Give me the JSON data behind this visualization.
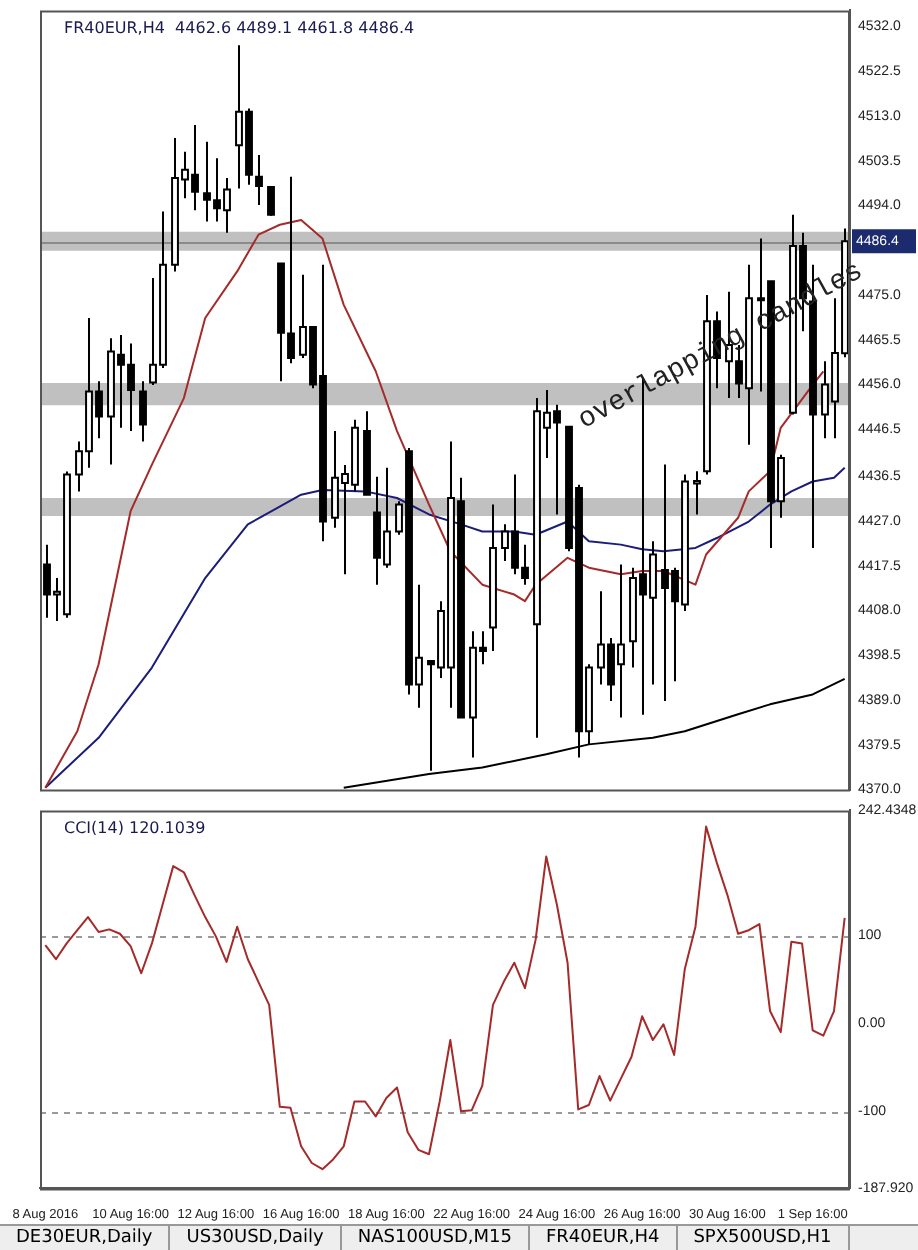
{
  "chart_data": [
    {
      "type": "candlestick",
      "title": "FR40EUR,H4  4462.6 4489.1 4461.8 4486.4",
      "categories": [
        null,
        null,
        null,
        null,
        null,
        null,
        null,
        null,
        null,
        null,
        null,
        null,
        null,
        null,
        null,
        null,
        null,
        null,
        null,
        null,
        null,
        null,
        null,
        null,
        null,
        null,
        null,
        null,
        null,
        null,
        null,
        null,
        null,
        null,
        null,
        null,
        null,
        null,
        null,
        null,
        null,
        null,
        null,
        null,
        null,
        null,
        null,
        null,
        null,
        null,
        null,
        null,
        null,
        null,
        null,
        null,
        null,
        null,
        null,
        null,
        null,
        null,
        null,
        null,
        null,
        null,
        null,
        null,
        null,
        null,
        null,
        null,
        null,
        null,
        null,
        null
      ],
      "ohlc": [
        [
          4417.8,
          4422.0,
          4406.5,
          4411.4
        ],
        [
          4411.4,
          4414.9,
          4405.8,
          4412.0
        ],
        [
          4407.2,
          4437.5,
          4406.5,
          4436.9
        ],
        [
          4436.9,
          4443.9,
          4433.3,
          4441.8
        ],
        [
          4441.8,
          4470.1,
          4438.3,
          4454.5
        ],
        [
          4454.5,
          4456.7,
          4444.6,
          4449.2
        ],
        [
          4449.2,
          4465.8,
          4439.0,
          4463.0
        ],
        [
          4462.3,
          4466.5,
          4446.8,
          4460.2
        ],
        [
          4460.2,
          4464.7,
          4446.1,
          4454.8
        ],
        [
          4454.5,
          4456.7,
          4443.9,
          4447.5
        ],
        [
          4456.4,
          4478.6,
          4455.9,
          4460.2
        ],
        [
          4460.2,
          4492.7,
          4459.5,
          4481.4
        ],
        [
          4481.4,
          4508.3,
          4480.0,
          4499.8
        ],
        [
          4499.5,
          4505.4,
          4495.5,
          4501.6
        ],
        [
          4500.5,
          4511.1,
          4493.0,
          4496.9
        ],
        [
          4496.6,
          4507.5,
          4490.6,
          4495.2
        ],
        [
          4495.1,
          4504.0,
          4490.6,
          4493.4
        ],
        [
          4493.0,
          4499.8,
          4488.2,
          4497.4
        ],
        [
          4506.8,
          4528.0,
          4497.6,
          4513.9
        ],
        [
          4513.9,
          4514.6,
          4498.4,
          4500.5
        ],
        [
          4500.1,
          4504.7,
          4494.1,
          4498.1
        ],
        [
          4497.9,
          4497.9,
          4491.8,
          4492.0
        ],
        [
          4481.7,
          4481.7,
          4456.7,
          4467.0
        ],
        [
          4466.8,
          4500.1,
          4460.5,
          4461.6
        ],
        [
          4462.3,
          4479.3,
          4461.6,
          4468.2
        ],
        [
          4468.2,
          4468.2,
          4455.2,
          4456.0
        ],
        [
          4457.8,
          4481.4,
          4422.7,
          4426.9
        ],
        [
          4427.7,
          4446.1,
          4425.6,
          4436.2
        ],
        [
          4435.1,
          4438.9,
          4415.7,
          4437.0
        ],
        [
          4434.7,
          4448.5,
          4433.3,
          4446.8
        ],
        [
          4446.1,
          4450.3,
          4432.6,
          4432.6
        ],
        [
          4428.8,
          4436.4,
          4413.5,
          4419.2
        ],
        [
          4417.8,
          4438.3,
          4417.1,
          4424.8
        ],
        [
          4424.8,
          4431.2,
          4424.1,
          4430.5
        ],
        [
          4441.8,
          4442.5,
          4390.2,
          4392.3
        ],
        [
          4392.3,
          4413.5,
          4387.4,
          4398.0
        ],
        [
          4397.3,
          4397.3,
          4374.0,
          4396.6
        ],
        [
          4395.9,
          4410.0,
          4393.7,
          4407.9
        ],
        [
          4395.9,
          4443.9,
          4387.4,
          4431.9
        ],
        [
          4431.2,
          4436.2,
          4385.3,
          4385.3
        ],
        [
          4385.3,
          4403.6,
          4376.8,
          4400.1
        ],
        [
          4400.1,
          4403.6,
          4396.6,
          4399.4
        ],
        [
          4404.4,
          4430.5,
          4399.4,
          4421.3
        ],
        [
          4421.3,
          4426.3,
          4418.5,
          4424.8
        ],
        [
          4424.8,
          4436.9,
          4415.7,
          4417.1
        ],
        [
          4417.1,
          4422.0,
          4413.5,
          4414.9
        ],
        [
          4405.1,
          4453.1,
          4381.0,
          4450.3
        ],
        [
          4446.8,
          4454.8,
          4440.4,
          4450.0
        ],
        [
          4450.3,
          4451.7,
          4428.4,
          4447.9
        ],
        [
          4447.0,
          4447.0,
          4420.6,
          4421.3
        ],
        [
          4434.0,
          4434.7,
          4376.8,
          4382.4
        ],
        [
          4382.4,
          4396.6,
          4379.6,
          4395.9
        ],
        [
          4395.9,
          4412.1,
          4392.3,
          4400.8
        ],
        [
          4400.8,
          4402.2,
          4388.8,
          4392.3
        ],
        [
          4396.6,
          4417.8,
          4385.3,
          4400.8
        ],
        [
          4401.5,
          4417.1,
          4395.9,
          4414.9
        ],
        [
          4415.7,
          4457.4,
          4385.9,
          4411.4
        ],
        [
          4410.7,
          4422.7,
          4392.3,
          4419.9
        ],
        [
          4416.6,
          4439.0,
          4388.8,
          4412.8
        ],
        [
          4416.4,
          4417.1,
          4393.0,
          4410.0
        ],
        [
          4409.3,
          4436.9,
          4407.9,
          4435.4
        ],
        [
          4435.0,
          4437.6,
          4428.4,
          4435.5
        ],
        [
          4437.6,
          4475.0,
          4436.9,
          4469.4
        ],
        [
          4469.4,
          4471.5,
          4455.2,
          4461.6
        ],
        [
          4460.9,
          4475.7,
          4453.1,
          4464.4
        ],
        [
          4460.9,
          4464.4,
          4453.1,
          4456.2
        ],
        [
          4455.2,
          4481.4,
          4443.2,
          4474.3
        ],
        [
          4474.0,
          4487.0,
          4454.5,
          4474.3
        ],
        [
          4477.9,
          4477.9,
          4421.3,
          4431.2
        ],
        [
          4431.2,
          4441.1,
          4427.7,
          4440.4
        ],
        [
          4450.0,
          4492.0,
          4449.6,
          4485.4
        ],
        [
          4485.4,
          4488.2,
          4467.3,
          4474.3
        ],
        [
          4473.6,
          4481.4,
          4421.3,
          4449.6
        ],
        [
          4449.6,
          4460.9,
          4444.6,
          4456.0
        ],
        [
          4452.4,
          4474.3,
          4444.6,
          4462.7
        ],
        [
          4462.6,
          4489.1,
          4461.8,
          4486.4
        ]
      ],
      "series": [
        {
          "type": "line",
          "color": "#a52a2a",
          "values": [
            4370.4,
            null,
            null,
            4382.4,
            null,
            4396.6,
            null,
            null,
            4429.1,
            null,
            4439.0,
            null,
            null,
            4453.1,
            null,
            4470.1,
            null,
            null,
            4480.0,
            null,
            4487.8,
            null,
            4489.9,
            null,
            4490.9,
            null,
            4487.0,
            null,
            4472.9,
            null,
            null,
            4458.8,
            null,
            4446.1,
            null,
            null,
            4430.5,
            null,
            4420.6,
            null,
            null,
            4413.5,
            null,
            null,
            4411.4,
            4410.0,
            4413.5,
            null,
            null,
            4419.2,
            null,
            4417.1,
            null,
            null,
            4415.7,
            null,
            4416.4,
            null,
            4416.4,
            null,
            null,
            4413.5,
            4419.9,
            null,
            null,
            4427.7,
            4433.3,
            null,
            4437.6,
            4446.8,
            null,
            null,
            4455.9,
            4458.8,
            null,
            null
          ]
        },
        {
          "type": "line",
          "color": "#1c1c7a",
          "values": [
            4370.4,
            null,
            null,
            null,
            null,
            4381.0,
            null,
            null,
            null,
            null,
            4395.9,
            null,
            null,
            null,
            null,
            4414.9,
            null,
            null,
            null,
            4426.3,
            null,
            null,
            null,
            null,
            4432.6,
            null,
            4433.6,
            null,
            null,
            null,
            4433.3,
            null,
            null,
            4431.9,
            null,
            null,
            4428.4,
            null,
            null,
            4426.3,
            null,
            4424.8,
            null,
            null,
            4424.8,
            null,
            4424.1,
            null,
            null,
            4426.9,
            null,
            4422.7,
            null,
            null,
            4422.0,
            null,
            4421.0,
            null,
            4420.6,
            null,
            null,
            4421.3,
            null,
            4423.4,
            null,
            null,
            4426.9,
            null,
            4430.5,
            null,
            4433.3,
            null,
            4435.4,
            null,
            4436.2,
            4438.3
          ]
        },
        {
          "type": "line",
          "color": "#000000",
          "values": [
            null,
            null,
            null,
            null,
            null,
            null,
            null,
            null,
            null,
            null,
            null,
            null,
            null,
            null,
            null,
            null,
            null,
            null,
            null,
            null,
            null,
            null,
            null,
            null,
            null,
            null,
            null,
            null,
            4370.4,
            null,
            null,
            null,
            null,
            null,
            null,
            null,
            4373.3,
            null,
            null,
            null,
            null,
            4374.7,
            null,
            null,
            null,
            null,
            null,
            4377.5,
            null,
            null,
            null,
            4379.6,
            null,
            null,
            null,
            null,
            null,
            4381.0,
            null,
            null,
            4382.4,
            null,
            null,
            null,
            null,
            4386.0,
            null,
            null,
            4388.1,
            null,
            null,
            null,
            4390.2,
            null,
            null,
            4393.5
          ]
        }
      ],
      "ylim": [
        4370,
        4535.4
      ],
      "yticks": [
        {
          "value": 4370,
          "label": "4370.0"
        },
        {
          "value": 4379.5,
          "label": "4379.5"
        },
        {
          "value": 4389,
          "label": "4389.0"
        },
        {
          "value": 4398.5,
          "label": "4398.5"
        },
        {
          "value": 4408,
          "label": "4408.0"
        },
        {
          "value": 4417.5,
          "label": "4417.5"
        },
        {
          "value": 4427,
          "label": "4427.0"
        },
        {
          "value": 4436.5,
          "label": "4436.5"
        },
        {
          "value": 4446.5,
          "label": "4446.5"
        },
        {
          "value": 4456,
          "label": "4456.0"
        },
        {
          "value": 4465.5,
          "label": "4465.5"
        },
        {
          "value": 4475,
          "label": "4475.0"
        },
        {
          "value": 4494,
          "label": "4494.0"
        },
        {
          "value": 4503.5,
          "label": "4503.5"
        },
        {
          "value": 4513,
          "label": "4513.0"
        },
        {
          "value": 4522.5,
          "label": "4522.5"
        },
        {
          "value": 4532,
          "label": "4532.0"
        }
      ],
      "tick_labels": "y",
      "bands": [
        {
          "axis": "y",
          "from": 4451.6,
          "to": 4456.3,
          "color": "#c0c0c0"
        },
        {
          "axis": "y",
          "from": 4428.1,
          "to": 4431.9,
          "color": "#c0c0c0"
        },
        {
          "axis": "y",
          "from": 4484.4,
          "to": 4488.4,
          "color": "#c0c0c0"
        }
      ],
      "ref_lines": [
        {
          "axis": "y",
          "value": 4486.4,
          "label": "4486.4",
          "color": "#8a8a8a"
        }
      ],
      "annotations": [
        "overlapping candles"
      ]
    },
    {
      "type": "line",
      "title": "CCI(14) 120.1039",
      "categories": [
        "8 Aug 2016",
        null,
        null,
        null,
        null,
        null,
        null,
        null,
        "10 Aug 16:00",
        null,
        null,
        null,
        null,
        null,
        null,
        null,
        "12 Aug 16:00",
        null,
        null,
        null,
        null,
        null,
        null,
        null,
        "16 Aug 16:00",
        null,
        null,
        null,
        null,
        null,
        null,
        null,
        "18 Aug 16:00",
        null,
        null,
        null,
        null,
        null,
        null,
        null,
        "22 Aug 16:00",
        null,
        null,
        null,
        null,
        null,
        null,
        null,
        "24 Aug 16:00",
        null,
        null,
        null,
        null,
        null,
        null,
        null,
        "26 Aug 16:00",
        null,
        null,
        null,
        null,
        null,
        null,
        null,
        "30 Aug 16:00",
        null,
        null,
        null,
        null,
        null,
        null,
        null,
        "1 Sep 16:00",
        null,
        null,
        null
      ],
      "series": [
        {
          "color": "#a52a2a",
          "values": [
            89,
            73,
            91,
            106,
            121,
            104,
            107,
            102,
            88,
            57,
            91,
            135,
            179,
            172,
            146,
            121,
            99,
            70,
            110,
            73,
            47,
            21,
            -95,
            -96,
            -140,
            -159,
            -166,
            -155,
            -140,
            -89,
            -89,
            -106,
            -85,
            -73,
            -124,
            -144,
            -149,
            -89,
            -19,
            -100,
            -99,
            -71,
            21,
            47,
            69,
            40,
            95,
            190,
            135,
            69,
            -98,
            -93,
            -60,
            -88,
            -63,
            -38,
            8,
            -19,
            -1,
            -36,
            62,
            110,
            224,
            183,
            146,
            102,
            106,
            113,
            14,
            -10,
            93,
            91,
            -8,
            -14,
            14,
            120
          ]
        }
      ],
      "ylim": [
        -187.92,
        242.4348
      ],
      "yticks": [
        {
          "value": -187.92,
          "label": "-187.920"
        },
        -100,
        {
          "value": 0,
          "label": "0.00"
        },
        100,
        {
          "value": 242.4348,
          "label": "242.4348"
        }
      ],
      "ref_lines": [
        {
          "axis": "y",
          "value": 100,
          "color": "#9a9a9a",
          "line_style": "dashed"
        },
        {
          "axis": "y",
          "value": -100,
          "color": "#9a9a9a",
          "line_style": "dashed"
        }
      ],
      "annotations": [
        "DE30EUR,Daily",
        "US30USD,Daily",
        "NAS100USD,M15",
        "FR40EUR,H4",
        "SPX500USD,H1"
      ]
    }
  ]
}
